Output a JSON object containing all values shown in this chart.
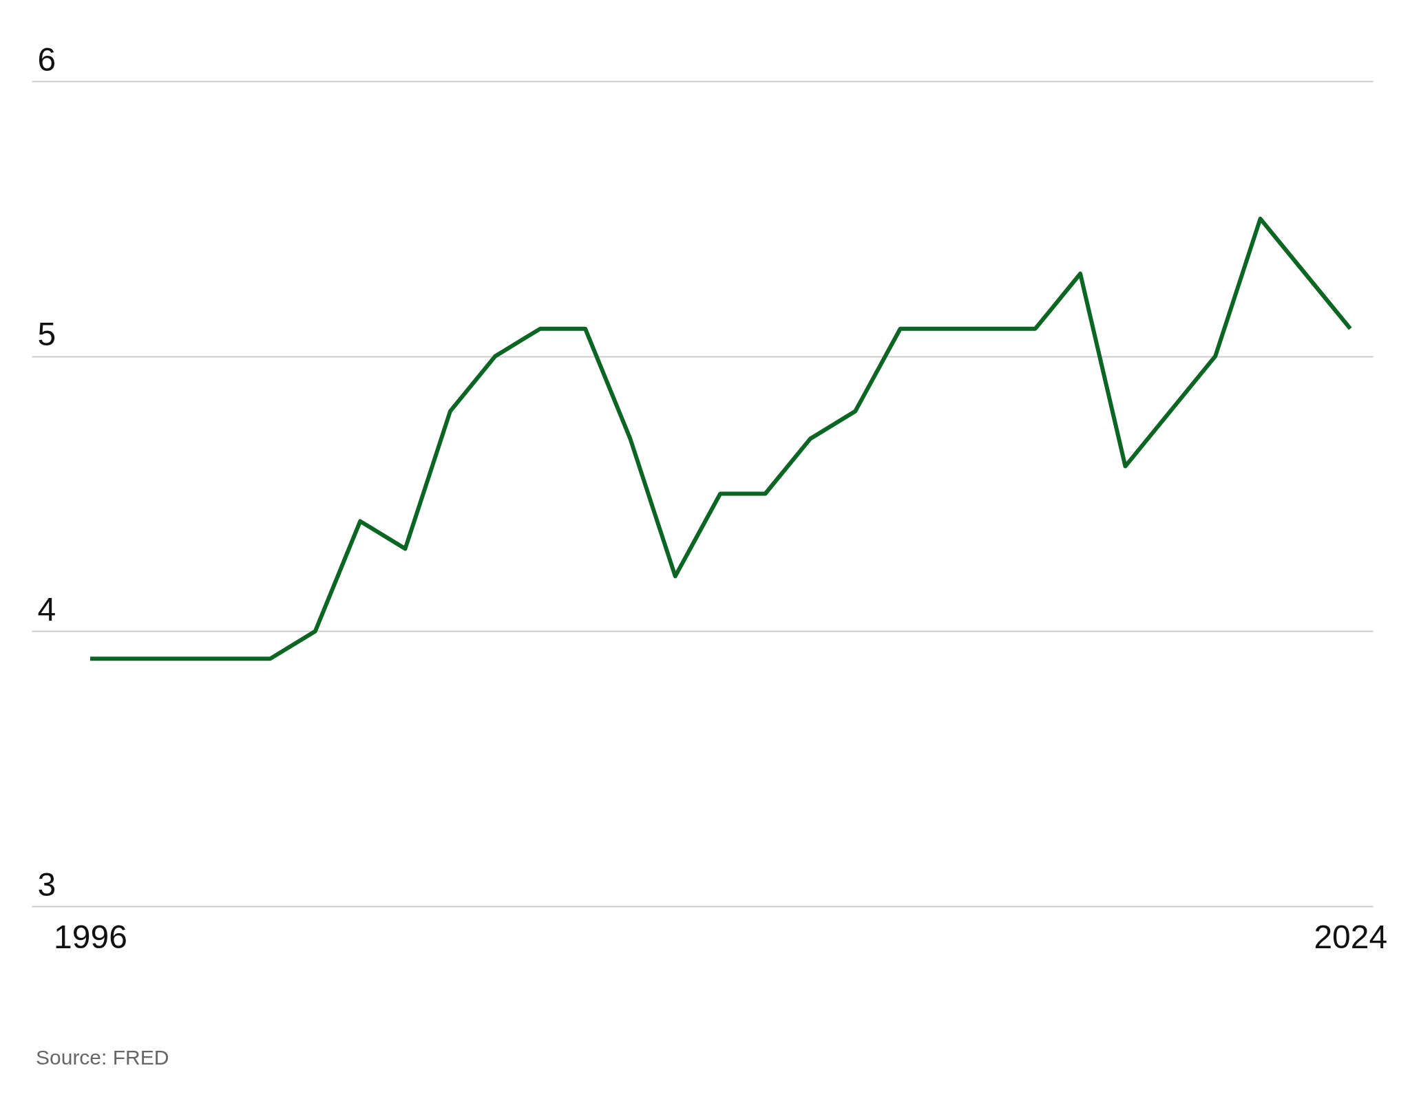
{
  "chart_data": {
    "type": "line",
    "x": [
      1996,
      1997,
      1998,
      1999,
      2000,
      2001,
      2002,
      2003,
      2004,
      2005,
      2006,
      2007,
      2008,
      2009,
      2010,
      2011,
      2012,
      2013,
      2014,
      2015,
      2016,
      2017,
      2018,
      2019,
      2020,
      2021,
      2022,
      2023,
      2024
    ],
    "series": [
      {
        "color": "#0b6623",
        "values": [
          3.9,
          3.9,
          3.9,
          3.9,
          3.9,
          4.0,
          4.4,
          4.3,
          4.8,
          5.0,
          5.1,
          5.1,
          4.7,
          4.2,
          4.5,
          4.5,
          4.7,
          4.8,
          5.1,
          5.1,
          5.1,
          5.1,
          5.3,
          4.6,
          4.8,
          5.0,
          5.5,
          5.3,
          5.1
        ]
      }
    ],
    "xlim": [
      1994.7,
      2024.5
    ],
    "xticks": [
      1996,
      2024
    ],
    "ylim": [
      3,
      6
    ],
    "yticks": [
      3,
      4,
      5,
      6
    ],
    "grid": "y",
    "marker": "none",
    "line_style": "solid",
    "annotations": [
      "Source: FRED"
    ]
  }
}
